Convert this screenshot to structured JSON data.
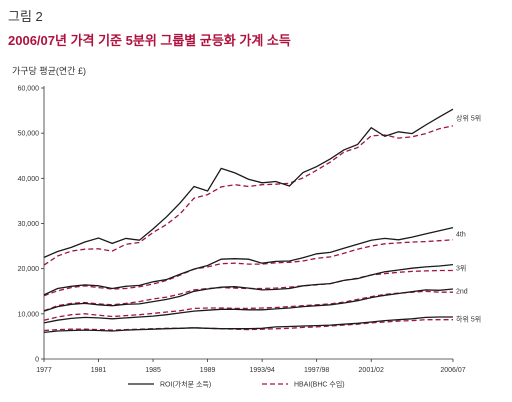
{
  "figure_label": "그림 2",
  "title": "2006/07년 가격 기준 5분위 그룹별 균등화 가계 소득",
  "chart_data": {
    "type": "line",
    "ylabel": "가구당 평균(연간 £)",
    "ylim": [
      0,
      60000
    ],
    "yticks": [
      "0",
      "10,000",
      "20,000",
      "30,000",
      "40,000",
      "50,000",
      "60,000"
    ],
    "ytick_values": [
      0,
      10000,
      20000,
      30000,
      40000,
      50000,
      60000
    ],
    "x": [
      1977,
      1978,
      1979,
      1980,
      1981,
      1982,
      1983,
      1984,
      1985,
      1986,
      1987,
      1988,
      1989,
      1990,
      1991,
      1992,
      1993,
      1994,
      1995,
      1996,
      1997,
      1998,
      1999,
      2000,
      2001,
      2002,
      2003,
      2004,
      2005,
      2006,
      2007
    ],
    "xlim": [
      1977,
      2007
    ],
    "xticks": [
      {
        "label": "1977",
        "x": 1977
      },
      {
        "label": "1981",
        "x": 1981
      },
      {
        "label": "1985",
        "x": 1985
      },
      {
        "label": "1989",
        "x": 1989
      },
      {
        "label": "1993/94",
        "x": 1993
      },
      {
        "label": "1997/98",
        "x": 1997
      },
      {
        "label": "2001/02",
        "x": 2001
      },
      {
        "label": "2006/07",
        "x": 2007
      }
    ],
    "groups": [
      {
        "label": "상위 5위",
        "roi": [
          22500,
          23800,
          24700,
          25900,
          26800,
          25600,
          26700,
          26300,
          28800,
          31500,
          34600,
          38200,
          37200,
          42200,
          41200,
          39800,
          39000,
          39300,
          38300,
          41300,
          42600,
          44300,
          46300,
          47500,
          51200,
          49300,
          50300,
          49900,
          51800,
          53600,
          55300
        ],
        "hbai": [
          20800,
          22800,
          23900,
          24300,
          24400,
          23900,
          25400,
          25800,
          28000,
          29800,
          32200,
          35600,
          36400,
          38100,
          38600,
          38200,
          38600,
          38700,
          38900,
          40100,
          41800,
          43600,
          45800,
          46800,
          49400,
          49600,
          48900,
          49200,
          49900,
          51000,
          51600
        ]
      },
      {
        "label": "4th",
        "roi": [
          14200,
          15600,
          16100,
          16400,
          16200,
          15600,
          16100,
          16300,
          17100,
          17600,
          18800,
          19900,
          20700,
          22100,
          22200,
          22100,
          21200,
          21600,
          21700,
          22400,
          23300,
          23600,
          24500,
          25400,
          26300,
          26700,
          26400,
          27000,
          27700,
          28400,
          29100
        ],
        "hbai": [
          14000,
          15100,
          15800,
          16200,
          15800,
          15500,
          15600,
          16000,
          16600,
          17400,
          18600,
          19900,
          20400,
          21100,
          21200,
          21000,
          21000,
          21300,
          21400,
          21700,
          22300,
          22600,
          23400,
          24300,
          25000,
          25500,
          25700,
          25900,
          26000,
          26200,
          26400
        ]
      },
      {
        "label": "3위",
        "roi": [
          10600,
          11600,
          12100,
          12300,
          12000,
          11800,
          12100,
          12200,
          12700,
          13200,
          13900,
          15000,
          15500,
          15900,
          16000,
          15700,
          15300,
          15400,
          15600,
          16200,
          16500,
          16700,
          17400,
          17800,
          18600,
          19300,
          19700,
          20100,
          20400,
          20600,
          20900
        ],
        "hbai": [
          10700,
          11800,
          12300,
          12500,
          12200,
          12000,
          12300,
          12700,
          13300,
          13700,
          14400,
          15300,
          15600,
          15800,
          15700,
          15600,
          15600,
          15700,
          15900,
          16200,
          16400,
          16700,
          17400,
          17900,
          18600,
          18900,
          19200,
          19400,
          19500,
          19600,
          19600
        ]
      },
      {
        "label": "2nd",
        "roi": [
          8000,
          8600,
          9000,
          9200,
          9100,
          8900,
          9100,
          9300,
          9500,
          9800,
          10200,
          10600,
          10800,
          11000,
          11000,
          10900,
          10900,
          11100,
          11300,
          11600,
          11800,
          12000,
          12400,
          12900,
          13600,
          14100,
          14500,
          14900,
          15300,
          15200,
          15500
        ],
        "hbai": [
          8600,
          9300,
          9800,
          10000,
          9700,
          9400,
          9600,
          9800,
          10100,
          10400,
          10700,
          11200,
          11300,
          11300,
          11200,
          11200,
          11300,
          11400,
          11600,
          11800,
          12000,
          12200,
          12600,
          13200,
          13800,
          14300,
          14600,
          14800,
          15000,
          14800,
          14800
        ]
      },
      {
        "label": "하위 5위",
        "roi": [
          5900,
          6200,
          6300,
          6400,
          6300,
          6200,
          6400,
          6500,
          6600,
          6700,
          6800,
          6900,
          6800,
          6700,
          6700,
          6700,
          6800,
          7100,
          7200,
          7300,
          7400,
          7500,
          7700,
          7900,
          8200,
          8500,
          8700,
          8900,
          9200,
          9300,
          9300
        ],
        "hbai": [
          6300,
          6500,
          6600,
          6600,
          6500,
          6400,
          6500,
          6600,
          6700,
          6800,
          6800,
          6900,
          6800,
          6700,
          6600,
          6500,
          6600,
          6700,
          6800,
          7000,
          7100,
          7300,
          7500,
          7700,
          8000,
          8200,
          8400,
          8500,
          8700,
          8700,
          8700
        ]
      }
    ],
    "legend": [
      {
        "label": "ROI(가처분 소득)",
        "style": "solid",
        "color": "#1a1a1a"
      },
      {
        "label": "HBAI(BHC 수입)",
        "style": "dashed",
        "color": "#a0163c"
      }
    ],
    "colors": {
      "roi": "#1a1a1a",
      "hbai": "#a0163c",
      "axis": "#333333",
      "title": "#b0123f"
    },
    "grid": false,
    "legend_position": "bottom"
  }
}
